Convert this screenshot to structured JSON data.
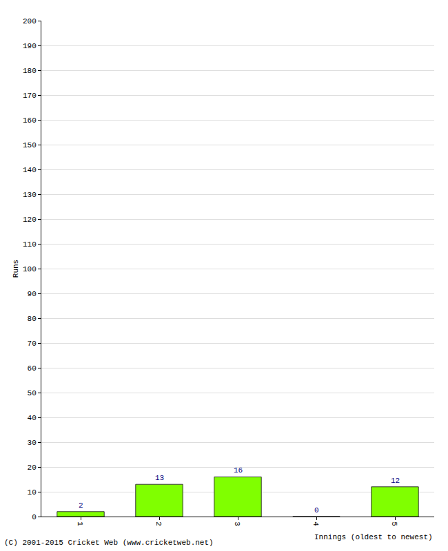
{
  "chart_data": {
    "type": "bar",
    "categories": [
      "1",
      "2",
      "3",
      "4",
      "5"
    ],
    "values": [
      2,
      13,
      16,
      0,
      12
    ],
    "color": "#80ff00",
    "x_label": "Innings (oldest to newest)",
    "y_label": "Runs",
    "ylim": [
      0,
      200
    ],
    "yticks": [
      0,
      10,
      20,
      30,
      40,
      50,
      60,
      70,
      80,
      90,
      100,
      110,
      120,
      130,
      140,
      150,
      160,
      170,
      180,
      190,
      200
    ],
    "grid": true,
    "data_labels": true,
    "annotations": [
      "(C) 2001-2015 Cricket Web (www.cricketweb.net)"
    ]
  }
}
